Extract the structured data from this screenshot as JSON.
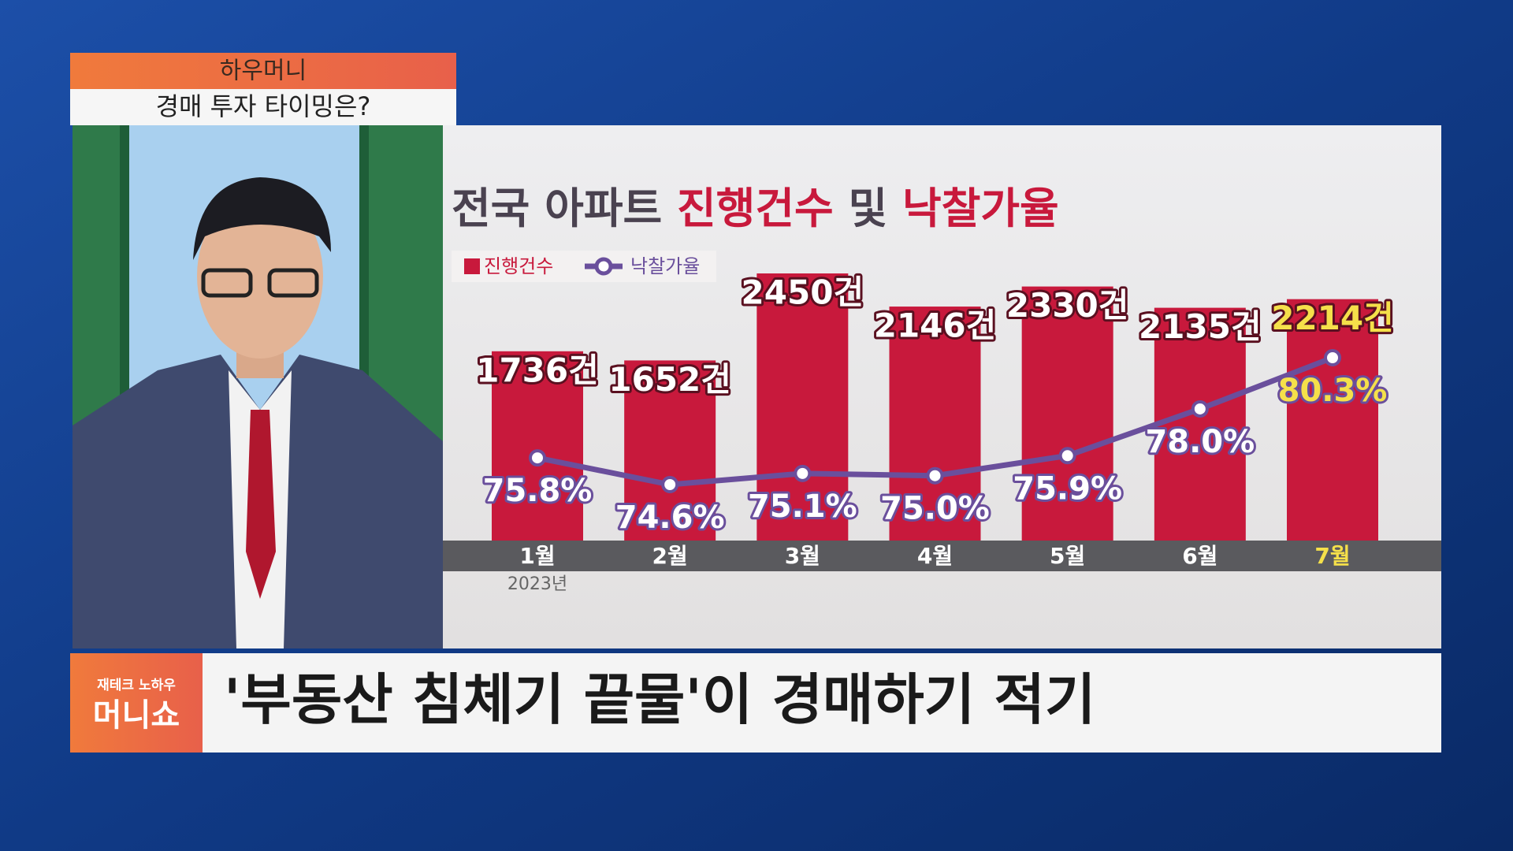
{
  "program": {
    "tag": "하우머니",
    "topic": "경매 투자 타이밍은?",
    "logo_small": "재테크 노하우",
    "logo_big": "머니쇼",
    "headline": "'부동산 침체기 끝물'이 경매하기 적기"
  },
  "chart_data": {
    "type": "bar-line",
    "title": [
      "전국 아파트 ",
      "진행건수",
      " 및 ",
      "낙찰가율"
    ],
    "categories": [
      "1월",
      "2월",
      "3월",
      "4월",
      "5월",
      "6월",
      "7월"
    ],
    "annotation": "2023년",
    "series": [
      {
        "name": "진행건수",
        "type": "bar",
        "color": "#c8193c",
        "values": [
          1736,
          1652,
          2450,
          2146,
          2330,
          2135,
          2214
        ],
        "value_labels": [
          "1736건",
          "1652건",
          "2450건",
          "2146건",
          "2330건",
          "2135건",
          "2214건"
        ]
      },
      {
        "name": "낙찰가율",
        "type": "line",
        "color": "#6a4f9c",
        "values": [
          75.8,
          74.6,
          75.1,
          75.0,
          75.9,
          78.0,
          80.3
        ],
        "value_labels": [
          "75.8%",
          "74.6%",
          "75.1%",
          "75.0%",
          "75.9%",
          "78.0%",
          "80.3%"
        ]
      }
    ]
  }
}
